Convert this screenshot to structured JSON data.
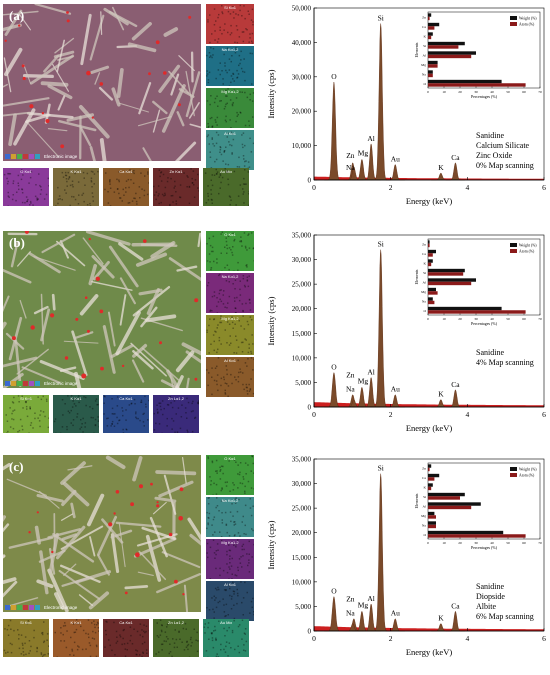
{
  "panels": [
    {
      "label": "(a)",
      "micro_caption": "Electronic image",
      "micro_tint": "#8a5e72",
      "maps_side": [
        {
          "name": "Si Kα1",
          "color": "#b83a3a"
        },
        {
          "name": "Na Kα1,2",
          "color": "#1f6f86"
        },
        {
          "name": "Mg Kα1,2",
          "color": "#3a8a3a"
        },
        {
          "name": "Al Kα1",
          "color": "#3f8f8a"
        }
      ],
      "maps_bottom": [
        {
          "name": "O Kα1",
          "color": "#8a3a9a"
        },
        {
          "name": "K Kα1",
          "color": "#7a6a3a"
        },
        {
          "name": "Ca Kα1",
          "color": "#8a5a2a"
        },
        {
          "name": "Zn Kα1",
          "color": "#6a2a2a"
        },
        {
          "name": "Au Mα",
          "color": "#4a6a2a"
        }
      ],
      "legend": [
        "Weight (%)",
        "Atom (%)"
      ],
      "annotation": [
        "Sanidine",
        "Calcium Silicate",
        "Zinc Oxide",
        "0% Map scanning"
      ],
      "ylim": [
        0,
        50000
      ],
      "yticks": [
        "0",
        "10,000",
        "20,000",
        "30,000",
        "40,000",
        "50,000"
      ],
      "peak_labels": [
        "O",
        "Zn",
        "Na",
        "Mg",
        "Al",
        "Si",
        "Au",
        "K",
        "Ca"
      ]
    },
    {
      "label": "(b)",
      "micro_caption": "Electronic image",
      "micro_tint": "#6f8a4a",
      "maps_side": [
        {
          "name": "O Kα1",
          "color": "#3f9a3a"
        },
        {
          "name": "Na Kα1,2",
          "color": "#7a2a7a"
        },
        {
          "name": "Mg Kα1,2",
          "color": "#8a8a2a"
        },
        {
          "name": "Al Kα1",
          "color": "#8a5a2a"
        }
      ],
      "maps_bottom": [
        {
          "name": "Si Kα1",
          "color": "#7aaa3a"
        },
        {
          "name": "K Kα1",
          "color": "#2a5a4a"
        },
        {
          "name": "Ca Kα1",
          "color": "#2a4a8a"
        },
        {
          "name": "Zn Lα1,2",
          "color": "#3a2a7a"
        }
      ],
      "legend": [
        "Weight (%)",
        "Atom (%)"
      ],
      "annotation": [
        "Sanidine",
        "4%  Map scanning"
      ],
      "ylim": [
        0,
        35000
      ],
      "yticks": [
        "0",
        "5,000",
        "10,000",
        "15,000",
        "20,000",
        "25,000",
        "30,000",
        "35,000"
      ],
      "peak_labels": [
        "O",
        "Zn",
        "Mg",
        "Na",
        "Al",
        "Si",
        "Au",
        "K",
        "Ca"
      ]
    },
    {
      "label": "(c)",
      "micro_caption": "Electronic image",
      "micro_tint": "#7e8a4a",
      "maps_side": [
        {
          "name": "O Kα1",
          "color": "#3f9a3a"
        },
        {
          "name": "Na Kα1,2",
          "color": "#3f8a8a"
        },
        {
          "name": "Mg Kα1,2",
          "color": "#6a2a7a"
        },
        {
          "name": "Al Kα1",
          "color": "#2a4a6a"
        }
      ],
      "maps_bottom": [
        {
          "name": "Si Kα1",
          "color": "#8a7a2a"
        },
        {
          "name": "K Kα1",
          "color": "#9a5a2a"
        },
        {
          "name": "Ca Kα1",
          "color": "#6a2a2a"
        },
        {
          "name": "Zn Lα1,2",
          "color": "#4a6a2a"
        },
        {
          "name": "Au Mα",
          "color": "#2a8a6a"
        }
      ],
      "legend": [
        "Weight (%)",
        "Atom (%)"
      ],
      "annotation": [
        "Sanidine",
        "Diopside",
        "Albite",
        "6%  Map scanning"
      ],
      "ylim": [
        0,
        35000
      ],
      "yticks": [
        "0",
        "5,000",
        "10,000",
        "15,000",
        "20,000",
        "25,000",
        "30,000",
        "35,000"
      ],
      "peak_labels": [
        "O",
        "Na",
        "Zn",
        "Mg",
        "Al",
        "Si",
        "Au",
        "K",
        "Ca"
      ]
    }
  ],
  "axis": {
    "xlabel": "Energy (keV)",
    "ylabel": "Intensity (cps)",
    "xticks": [
      "0",
      "2",
      "4",
      "6"
    ]
  },
  "inset": {
    "ylabel": "Elements",
    "xlabel": "Percentages (%)",
    "xticks": [
      "0",
      "10",
      "20",
      "30",
      "40",
      "50",
      "60",
      "70"
    ]
  },
  "colors": {
    "spectrum_fill": "#cc1f1f",
    "peak_fill": "#7a4a2a",
    "weight_bar": "#111111",
    "atom_bar": "#8b1a1a"
  },
  "chart_data": [
    {
      "type": "area",
      "title": "",
      "xlabel": "Energy (keV)",
      "ylabel": "Intensity (cps)",
      "xlim": [
        0,
        6
      ],
      "ylim": [
        0,
        50000
      ],
      "peaks": [
        {
          "element": "O",
          "x": 0.52,
          "y": 28500
        },
        {
          "element": "Zn",
          "x": 1.01,
          "y": 5000
        },
        {
          "element": "Na",
          "x": 1.04,
          "y": 3800
        },
        {
          "element": "Mg",
          "x": 1.25,
          "y": 6000
        },
        {
          "element": "Al",
          "x": 1.49,
          "y": 10500
        },
        {
          "element": "Si",
          "x": 1.74,
          "y": 45500
        },
        {
          "element": "Au",
          "x": 2.12,
          "y": 4500
        },
        {
          "element": "K",
          "x": 3.31,
          "y": 2000
        },
        {
          "element": "Ca",
          "x": 3.69,
          "y": 5000
        }
      ],
      "inset": {
        "type": "bar",
        "categories": [
          "O",
          "Na",
          "Mg",
          "Al",
          "Si",
          "K",
          "Ca",
          "Zn"
        ],
        "series": [
          {
            "name": "Weight (%)",
            "values": [
              46,
              3,
              6,
              30,
              23,
              3,
              7,
              2
            ]
          },
          {
            "name": "Atom (%)",
            "values": [
              61,
              3,
              6,
              27,
              19,
              2,
              4,
              1
            ]
          }
        ],
        "xlim": [
          0,
          70
        ]
      }
    },
    {
      "type": "area",
      "title": "",
      "xlabel": "Energy (keV)",
      "ylabel": "Intensity (cps)",
      "xlim": [
        0,
        6
      ],
      "ylim": [
        0,
        35000
      ],
      "peaks": [
        {
          "element": "O",
          "x": 0.52,
          "y": 7000
        },
        {
          "element": "Zn",
          "x": 1.01,
          "y": 2500
        },
        {
          "element": "Na",
          "x": 1.04,
          "y": 1500
        },
        {
          "element": "Mg",
          "x": 1.25,
          "y": 4000
        },
        {
          "element": "Al",
          "x": 1.49,
          "y": 6000
        },
        {
          "element": "Si",
          "x": 1.74,
          "y": 32000
        },
        {
          "element": "Au",
          "x": 2.12,
          "y": 2500
        },
        {
          "element": "K",
          "x": 3.31,
          "y": 1500
        },
        {
          "element": "Ca",
          "x": 3.69,
          "y": 3500
        }
      ],
      "inset": {
        "type": "bar",
        "categories": [
          "O",
          "Na",
          "Mg",
          "Al",
          "Si",
          "K",
          "Ca",
          "Zn"
        ],
        "series": [
          {
            "name": "Weight (%)",
            "values": [
              46,
              3,
              5,
              30,
              23,
              3,
              5,
              1
            ]
          },
          {
            "name": "Atom (%)",
            "values": [
              61,
              4,
              6,
              27,
              22,
              2,
              3,
              1
            ]
          }
        ],
        "xlim": [
          0,
          70
        ]
      }
    },
    {
      "type": "area",
      "title": "",
      "xlabel": "Energy (keV)",
      "ylabel": "Intensity (cps)",
      "xlim": [
        0,
        6
      ],
      "ylim": [
        0,
        35000
      ],
      "peaks": [
        {
          "element": "O",
          "x": 0.52,
          "y": 7000
        },
        {
          "element": "Na",
          "x": 1.04,
          "y": 2500
        },
        {
          "element": "Zn",
          "x": 1.01,
          "y": 1500
        },
        {
          "element": "Mg",
          "x": 1.25,
          "y": 4000
        },
        {
          "element": "Al",
          "x": 1.49,
          "y": 5500
        },
        {
          "element": "Si",
          "x": 1.74,
          "y": 32000
        },
        {
          "element": "Au",
          "x": 2.12,
          "y": 2500
        },
        {
          "element": "K",
          "x": 3.31,
          "y": 1500
        },
        {
          "element": "Ca",
          "x": 3.69,
          "y": 4000
        }
      ],
      "inset": {
        "type": "bar",
        "categories": [
          "O",
          "Na",
          "Mg",
          "Al",
          "Si",
          "K",
          "Ca",
          "Zn"
        ],
        "series": [
          {
            "name": "Weight (%)",
            "values": [
              47,
              5,
              4,
              33,
              23,
              3,
              7,
              2
            ]
          },
          {
            "name": "Atom (%)",
            "values": [
              61,
              5,
              5,
              27,
              20,
              2,
              4,
              1
            ]
          }
        ],
        "xlim": [
          0,
          70
        ]
      }
    }
  ]
}
